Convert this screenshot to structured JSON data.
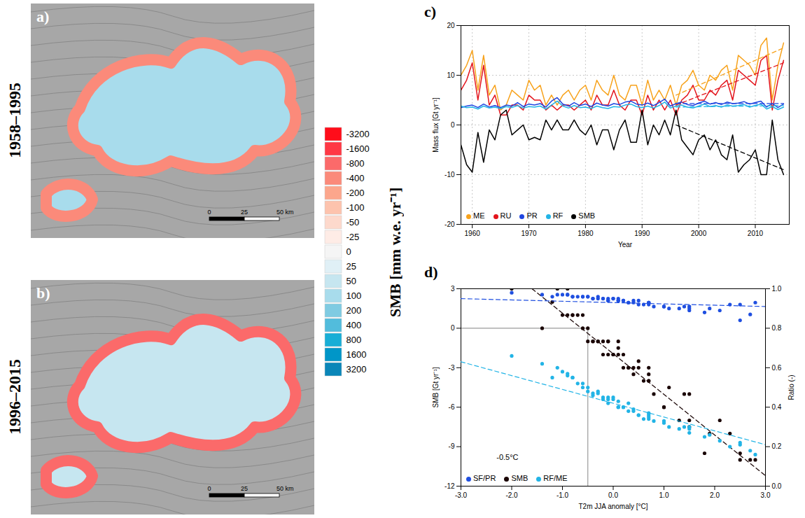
{
  "chart_data": [
    {
      "type": "map",
      "panel": "a)",
      "title": "1958–1995",
      "accumulation_smb": 100,
      "ablation_smb": -400,
      "scalebar": [
        0,
        25,
        {
          "value": 50,
          "label": "50 km"
        }
      ]
    },
    {
      "type": "map",
      "panel": "b)",
      "title": "1996–2015",
      "accumulation_smb": 50,
      "ablation_smb": -800,
      "scalebar": [
        0,
        25,
        {
          "value": 50,
          "label": "50 km"
        }
      ]
    },
    {
      "type": "colorbar",
      "label": "SMB [mm w.e. yr⁻¹]",
      "ticks": [
        -3200,
        -1600,
        -800,
        -400,
        -200,
        -100,
        -50,
        -25,
        0,
        25,
        50,
        100,
        200,
        400,
        800,
        1600,
        3200
      ],
      "colors": [
        "#ff0d1a",
        "#ff3845",
        "#fb6a6a",
        "#fb8a7a",
        "#fca68c",
        "#fdc3ad",
        "#fdd9cc",
        "#feece6",
        "#f5f5f5",
        "#e0f0f6",
        "#c6e6f0",
        "#a8dcec",
        "#7fcbe2",
        "#52bcdc",
        "#18aed6",
        "#0096c8",
        "#0a86b8"
      ]
    },
    {
      "type": "line",
      "panel": "c)",
      "x_label": "Year",
      "y_label": "Mass flux [Gt yr⁻¹]",
      "xlim": [
        1958,
        2016
      ],
      "xticks": [
        1960,
        1970,
        1980,
        1990,
        2000,
        2010
      ],
      "ylim": [
        -20,
        20
      ],
      "yticks": [
        -20,
        -10,
        0,
        10,
        20
      ],
      "grid": true,
      "legend": "bottom-left",
      "x": [
        1958,
        1959,
        1960,
        1961,
        1962,
        1963,
        1964,
        1965,
        1966,
        1967,
        1968,
        1969,
        1970,
        1971,
        1972,
        1973,
        1974,
        1975,
        1976,
        1977,
        1978,
        1979,
        1980,
        1981,
        1982,
        1983,
        1984,
        1985,
        1986,
        1987,
        1988,
        1989,
        1990,
        1991,
        1992,
        1993,
        1994,
        1995,
        1996,
        1997,
        1998,
        1999,
        2000,
        2001,
        2002,
        2003,
        2004,
        2005,
        2006,
        2007,
        2008,
        2009,
        2010,
        2011,
        2012,
        2013,
        2014,
        2015
      ],
      "series": [
        {
          "name": "ME",
          "color": "#f7a21b",
          "values": [
            10,
            12,
            15,
            7,
            14,
            6,
            8,
            3,
            4,
            7,
            6,
            5,
            9,
            7,
            8,
            4,
            6,
            4,
            6,
            7,
            5,
            7,
            8,
            5,
            9,
            7,
            6,
            10,
            6,
            5,
            8,
            8,
            4,
            9,
            5,
            7,
            5,
            8,
            4,
            8,
            9,
            11,
            8,
            7,
            10,
            9,
            11,
            12,
            7,
            14,
            13,
            12,
            10,
            16,
            17.5,
            5,
            12,
            16.5
          ],
          "trend": {
            "x": [
              1996,
              2015
            ],
            "values": [
              6,
              15.5
            ]
          }
        },
        {
          "name": "RU",
          "color": "#e3141c",
          "values": [
            7,
            9,
            12.5,
            5,
            12,
            4,
            6,
            2,
            2,
            4,
            4,
            3,
            6,
            5,
            5,
            3,
            4,
            3,
            4,
            4,
            3,
            4,
            5,
            3,
            6,
            4,
            4,
            7,
            4,
            3,
            5,
            5,
            2,
            6,
            3,
            5,
            3,
            5,
            2,
            5,
            6,
            8,
            5,
            5,
            7,
            6,
            8,
            9,
            5,
            11,
            10,
            9,
            8,
            13,
            14,
            3,
            9,
            13
          ],
          "trend": {
            "x": [
              1996,
              2015
            ],
            "values": [
              4,
              12.5
            ]
          }
        },
        {
          "name": "PR",
          "color": "#1f45e0",
          "values": [
            3.5,
            3.8,
            4.0,
            3.5,
            4.2,
            3.6,
            3.9,
            3.5,
            4.0,
            3.8,
            4.5,
            3.7,
            4.2,
            4.0,
            4.3,
            3.6,
            4.8,
            5.5,
            4.2,
            3.8,
            4.5,
            3.9,
            4.2,
            3.7,
            4.4,
            4.0,
            3.8,
            4.3,
            4.1,
            4.6,
            4.8,
            4.2,
            4.0,
            4.4,
            3.9,
            4.5,
            5.2,
            3.8,
            4.3,
            4.6,
            4.1,
            3.9,
            4.4,
            4.8,
            4.2,
            4.5,
            4.1,
            4.6,
            4.3,
            4.4,
            4.7,
            4.2,
            4.5,
            4.8,
            3.6,
            4.3,
            3.5,
            4.2
          ],
          "trend": {
            "x": [
              1996,
              2015
            ],
            "values": [
              4.3,
              4.3
            ]
          }
        },
        {
          "name": "RF",
          "color": "#22b4e6",
          "values": [
            3.8,
            3.5,
            3.6,
            3.2,
            3.8,
            3.4,
            3.6,
            3.3,
            3.7,
            3.5,
            3.9,
            3.4,
            3.7,
            3.6,
            3.8,
            3.2,
            4.0,
            4.8,
            3.8,
            3.4,
            3.9,
            3.5,
            3.6,
            3.3,
            3.8,
            3.5,
            3.3,
            3.7,
            3.6,
            4.0,
            4.2,
            3.7,
            3.5,
            3.8,
            3.4,
            3.9,
            4.6,
            3.4,
            3.8,
            4.0,
            3.6,
            3.4,
            3.8,
            4.2,
            3.7,
            3.9,
            3.6,
            4.0,
            3.8,
            3.9,
            4.1,
            3.6,
            3.9,
            4.2,
            3.2,
            3.7,
            3.1,
            3.6
          ],
          "trend": {
            "x": [
              1996,
              2015
            ],
            "values": [
              3.6,
              3.9
            ]
          }
        },
        {
          "name": "SMB",
          "color": "#000000",
          "values": [
            -4,
            -8,
            -9.5,
            -1.5,
            -7.5,
            -1,
            -3,
            2,
            3,
            -2,
            -1,
            0,
            -3,
            -2.5,
            -3,
            1,
            -1,
            1,
            -1,
            -1,
            1,
            -1,
            -2,
            0,
            -4,
            -1,
            -1,
            -5,
            -1,
            1,
            -3.5,
            -3.5,
            3,
            -4,
            0,
            -2,
            1,
            -2,
            3,
            -3,
            -4.5,
            -6,
            -3,
            -2,
            -5,
            -3,
            -6,
            -7,
            -2,
            -9.5,
            -8,
            -7,
            -5,
            -10,
            -10,
            1,
            -7,
            -10
          ],
          "trend": {
            "x": [
              1996,
              2015
            ],
            "values": [
              0,
              -9
            ]
          }
        }
      ]
    },
    {
      "type": "scatter",
      "panel": "d)",
      "x_label": "T2m JJA anomaly [°C]",
      "y_label": "SMB [Gt yr⁻¹]",
      "y2_label": "Ratio (-)",
      "xlim": [
        -3,
        3
      ],
      "xticks": [
        {
          "value": -3,
          "label": "-3.0"
        },
        {
          "value": -2,
          "label": "-2.0"
        },
        {
          "value": -1,
          "label": "-1.0"
        },
        {
          "value": 0,
          "label": "0.0"
        },
        {
          "value": 1,
          "label": "1.0"
        },
        {
          "value": 2,
          "label": "2.0"
        },
        {
          "value": 3,
          "label": "3.0"
        }
      ],
      "ylim": [
        -12,
        3
      ],
      "yticks": [
        -12,
        -9,
        -6,
        -3,
        0,
        3
      ],
      "y2lim": [
        0,
        1
      ],
      "y2ticks": [
        {
          "value": 0,
          "label": "0.0"
        },
        0.2,
        0.4,
        0.6,
        0.8,
        {
          "value": 1,
          "label": "1.0"
        }
      ],
      "legend": "bottom-left",
      "annotations": [
        {
          "text": "-0.5°C",
          "x": -2.3,
          "y": -9.8
        }
      ],
      "reference_lines": {
        "x": -0.5,
        "y": 0
      },
      "x": [
        0.7,
        1.9,
        2.5,
        0.1,
        1.5,
        -0.3,
        0.4,
        -1.2,
        -2.0,
        0.0,
        -0.2,
        -0.6,
        0.3,
        0.5,
        0.2,
        -0.9,
        -0.4,
        -0.7,
        -0.1,
        -0.3,
        -1.0,
        0.1,
        -0.2,
        -0.5,
        0.6,
        -0.5,
        -0.4,
        0.8,
        -0.1,
        -0.8,
        0.4,
        0.7,
        -1.1,
        0.7,
        -1.4,
        -0.1,
        -0.6,
        0.2,
        -0.9,
        0.3,
        1.1,
        1.0,
        0.5,
        0.0,
        1.5,
        0.7,
        1.0,
        1.5,
        0.1,
        1.8,
        2.3,
        2.1,
        1.4,
        2.5,
        2.7,
        -0.8,
        1.3,
        2.8
      ],
      "series": [
        {
          "name": "SF/PR",
          "color": "#1f4fe0",
          "axis": "y2",
          "marker": "circle",
          "values": [
            0.93,
            0.9,
            0.92,
            0.95,
            0.91,
            0.96,
            0.94,
            0.96,
            0.98,
            0.95,
            0.95,
            0.96,
            0.93,
            0.92,
            0.94,
            0.97,
            0.95,
            0.96,
            0.94,
            0.95,
            0.97,
            0.94,
            0.95,
            0.96,
            0.92,
            0.96,
            0.95,
            0.91,
            0.94,
            0.96,
            0.93,
            0.92,
            0.97,
            0.93,
            0.97,
            0.95,
            0.96,
            0.94,
            0.97,
            0.93,
            0.9,
            0.91,
            0.94,
            0.95,
            0.89,
            0.93,
            0.91,
            0.9,
            0.94,
            0.88,
            0.92,
            0.89,
            0.91,
            0.84,
            0.87,
            0.96,
            0.9,
            0.93
          ],
          "trend": {
            "x": [
              -3,
              3
            ],
            "values": [
              0.95,
              0.91
            ]
          }
        },
        {
          "name": "SMB",
          "color": "#1a0505",
          "marker": "circle",
          "values": [
            -4,
            -8,
            -9.5,
            -1.5,
            -7.5,
            -1,
            -3,
            2,
            3,
            -2,
            -1,
            0,
            -3,
            -2.5,
            -3,
            1,
            -1,
            1,
            -1,
            -1,
            1,
            -1,
            -2,
            0,
            -4,
            -1,
            -1,
            -5,
            -1,
            1,
            -3.5,
            -3.5,
            3,
            -4,
            0,
            -2,
            1,
            -2,
            3,
            -3,
            -4.5,
            -6,
            -3,
            -2,
            -5,
            -3,
            -6,
            -7,
            -2,
            -9.5,
            -8,
            -7,
            -5,
            -10,
            -10,
            1,
            -7,
            -10
          ],
          "trend": {
            "x": [
              -1.6,
              3
            ],
            "values": [
              3,
              -11.2
            ]
          }
        },
        {
          "name": "RF/ME",
          "color": "#22b4e6",
          "axis": "y2",
          "marker": "circle",
          "values": [
            0.36,
            0.26,
            0.22,
            0.4,
            0.3,
            0.48,
            0.38,
            0.55,
            0.66,
            0.45,
            0.44,
            0.5,
            0.42,
            0.36,
            0.4,
            0.56,
            0.47,
            0.52,
            0.44,
            0.47,
            0.58,
            0.4,
            0.45,
            0.5,
            0.34,
            0.48,
            0.46,
            0.33,
            0.42,
            0.55,
            0.39,
            0.34,
            0.6,
            0.37,
            0.62,
            0.45,
            0.52,
            0.4,
            0.57,
            0.38,
            0.3,
            0.33,
            0.36,
            0.44,
            0.27,
            0.35,
            0.32,
            0.29,
            0.43,
            0.25,
            0.2,
            0.23,
            0.3,
            0.21,
            0.18,
            0.55,
            0.29,
            0.16
          ],
          "trend": {
            "x": [
              -3,
              3
            ],
            "values": [
              0.63,
              0.21
            ]
          }
        }
      ]
    }
  ]
}
